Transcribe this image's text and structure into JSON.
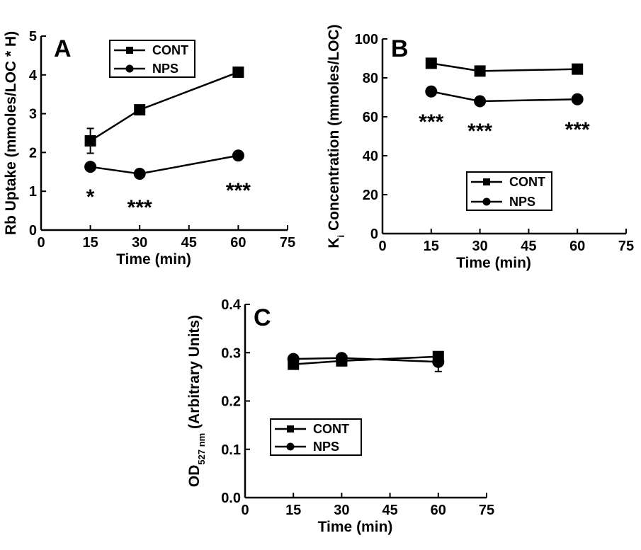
{
  "chart_data": [
    {
      "type": "line",
      "panel": "A",
      "xlabel": "Time (min)",
      "ylabel": "Rb Uptake (mmoles/LOC * H)",
      "xlim": [
        0,
        75
      ],
      "ylim": [
        0,
        5
      ],
      "xticks": [
        "0",
        "15",
        "30",
        "45",
        "60",
        "75"
      ],
      "yticks": [
        "0",
        "1",
        "2",
        "3",
        "4",
        "5"
      ],
      "x": [
        15,
        30,
        60
      ],
      "series": [
        {
          "name": "CONT",
          "marker": "square",
          "values": [
            2.3,
            3.1,
            4.07
          ],
          "errors": [
            0.32,
            0,
            0
          ]
        },
        {
          "name": "NPS",
          "marker": "circle",
          "values": [
            1.63,
            1.45,
            1.92
          ],
          "errors": [
            0,
            0,
            0
          ]
        }
      ],
      "annotations": [
        {
          "x": 15,
          "text": "*"
        },
        {
          "x": 30,
          "text": "***"
        },
        {
          "x": 60,
          "text": "***"
        }
      ],
      "legend_position": "top-center"
    },
    {
      "type": "line",
      "panel": "B",
      "xlabel": "Time (min)",
      "ylabel_main": "K",
      "ylabel_sub": "i",
      "ylabel_rest": " Concentration (mmoles/LOC)",
      "xlim": [
        0,
        75
      ],
      "ylim": [
        0,
        100
      ],
      "xticks": [
        "0",
        "15",
        "30",
        "45",
        "60",
        "75"
      ],
      "yticks": [
        "0",
        "20",
        "40",
        "60",
        "80",
        "100"
      ],
      "x": [
        15,
        30,
        60
      ],
      "series": [
        {
          "name": "CONT",
          "marker": "square",
          "values": [
            87.5,
            83.5,
            84.5
          ],
          "errors": [
            0,
            0,
            0
          ]
        },
        {
          "name": "NPS",
          "marker": "circle",
          "values": [
            73,
            68,
            69
          ],
          "errors": [
            0,
            0,
            0
          ]
        }
      ],
      "annotations": [
        {
          "x": 15,
          "text": "***"
        },
        {
          "x": 30,
          "text": "***"
        },
        {
          "x": 60,
          "text": "***"
        }
      ],
      "legend_position": "center-right"
    },
    {
      "type": "line",
      "panel": "C",
      "xlabel": "Time (min)",
      "ylabel_main": "OD",
      "ylabel_sub": "527 nm",
      "ylabel_rest": " (Arbitrary Units)",
      "xlim": [
        0,
        75
      ],
      "ylim": [
        0,
        0.4
      ],
      "xticks": [
        "0",
        "15",
        "30",
        "45",
        "60",
        "75"
      ],
      "yticks": [
        "0.0",
        "0.1",
        "0.2",
        "0.3",
        "0.4"
      ],
      "x": [
        15,
        30,
        60
      ],
      "series": [
        {
          "name": "CONT",
          "marker": "square",
          "values": [
            0.276,
            0.283,
            0.292
          ],
          "errors": [
            0,
            0,
            0
          ]
        },
        {
          "name": "NPS",
          "marker": "circle",
          "values": [
            0.287,
            0.289,
            0.281
          ],
          "errors": [
            0,
            0,
            0.02
          ]
        }
      ],
      "annotations": [],
      "legend_position": "bottom-center"
    }
  ]
}
